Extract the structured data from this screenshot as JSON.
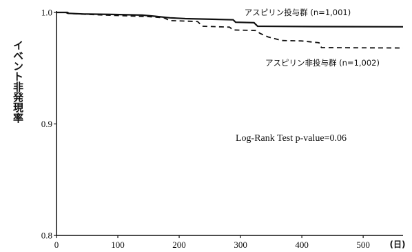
{
  "chart_data": {
    "type": "line",
    "title": "",
    "xlabel": "",
    "ylabel": "イベント非発現率",
    "x_unit": "(日)",
    "xlim": [
      0,
      565
    ],
    "ylim": [
      0.8,
      1.0
    ],
    "x_ticks": [
      0,
      100,
      200,
      300,
      400,
      500
    ],
    "y_ticks": [
      0.8,
      0.9,
      1.0
    ],
    "y_tick_labels": [
      "0.8",
      "0.9",
      "1.0"
    ],
    "grid": false,
    "series": [
      {
        "name": "アスピリン投与群 (n=1,001)",
        "line_style": "solid",
        "color": "#111111",
        "points": [
          [
            0,
            1.0
          ],
          [
            18,
            1.0
          ],
          [
            20,
            0.9992
          ],
          [
            45,
            0.9986
          ],
          [
            90,
            0.9982
          ],
          [
            140,
            0.9976
          ],
          [
            160,
            0.9966
          ],
          [
            185,
            0.9952
          ],
          [
            210,
            0.9944
          ],
          [
            260,
            0.9938
          ],
          [
            288,
            0.9934
          ],
          [
            292,
            0.9912
          ],
          [
            322,
            0.9908
          ],
          [
            328,
            0.9876
          ],
          [
            420,
            0.9873
          ],
          [
            565,
            0.9871
          ]
        ]
      },
      {
        "name": "アスピリン非投与群 (n=1,002)",
        "line_style": "dashed",
        "color": "#111111",
        "points": [
          [
            0,
            1.0
          ],
          [
            15,
            1.0
          ],
          [
            18,
            0.9992
          ],
          [
            50,
            0.9982
          ],
          [
            100,
            0.9972
          ],
          [
            150,
            0.9962
          ],
          [
            175,
            0.9952
          ],
          [
            185,
            0.9927
          ],
          [
            230,
            0.9918
          ],
          [
            238,
            0.9876
          ],
          [
            282,
            0.9868
          ],
          [
            288,
            0.9843
          ],
          [
            325,
            0.9838
          ],
          [
            332,
            0.9812
          ],
          [
            345,
            0.978
          ],
          [
            368,
            0.9748
          ],
          [
            400,
            0.9744
          ],
          [
            428,
            0.9728
          ],
          [
            432,
            0.9684
          ],
          [
            565,
            0.9681
          ]
        ]
      }
    ],
    "annotations": [
      {
        "text": "Log-Rank Test  p-value=0.06"
      }
    ],
    "legend": "inline-right"
  }
}
